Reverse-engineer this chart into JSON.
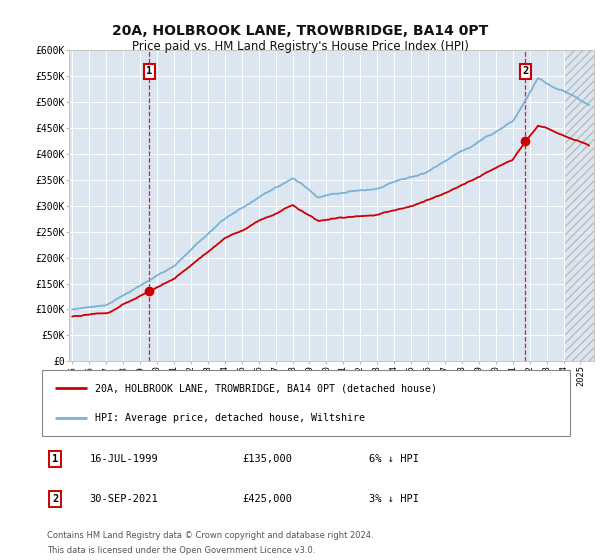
{
  "title": "20A, HOLBROOK LANE, TROWBRIDGE, BA14 0PT",
  "subtitle": "Price paid vs. HM Land Registry's House Price Index (HPI)",
  "background_color": "#ffffff",
  "plot_bg_color": "#dce6f1",
  "hpi_line_color": "#7ab3d4",
  "price_line_color": "#cc0000",
  "sale1_date": 1999.54,
  "sale1_price": 135000,
  "sale2_date": 2021.75,
  "sale2_price": 425000,
  "ylim_min": 0,
  "ylim_max": 600000,
  "xlim_min": 1994.8,
  "xlim_max": 2025.8,
  "legend_label_price": "20A, HOLBROOK LANE, TROWBRIDGE, BA14 0PT (detached house)",
  "legend_label_hpi": "HPI: Average price, detached house, Wiltshire",
  "note1_label": "1",
  "note2_label": "2",
  "note1_date": "16-JUL-1999",
  "note1_price": "£135,000",
  "note1_hpi": "6% ↓ HPI",
  "note2_date": "30-SEP-2021",
  "note2_price": "£425,000",
  "note2_hpi": "3% ↓ HPI",
  "footer_line1": "Contains HM Land Registry data © Crown copyright and database right 2024.",
  "footer_line2": "This data is licensed under the Open Government Licence v3.0.",
  "ytick_labels": [
    "£0",
    "£50K",
    "£100K",
    "£150K",
    "£200K",
    "£250K",
    "£300K",
    "£350K",
    "£400K",
    "£450K",
    "£500K",
    "£550K",
    "£600K"
  ],
  "ytick_values": [
    0,
    50000,
    100000,
    150000,
    200000,
    250000,
    300000,
    350000,
    400000,
    450000,
    500000,
    550000,
    600000
  ]
}
